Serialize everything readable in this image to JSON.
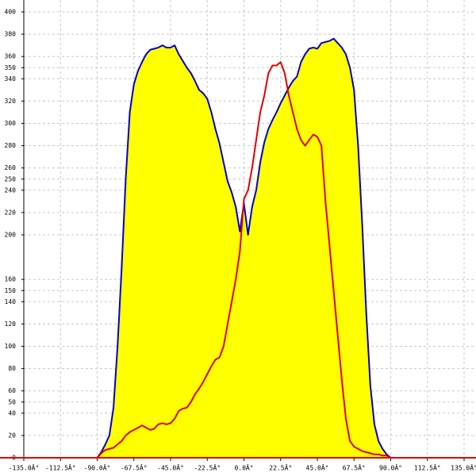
{
  "chart_data": {
    "type": "line",
    "x": [
      -90,
      -87.5,
      -85,
      -82.5,
      -80,
      -77.5,
      -75,
      -72.5,
      -70,
      -67.5,
      -65,
      -62.5,
      -60,
      -57.5,
      -55,
      -52.5,
      -50,
      -47.5,
      -45,
      -42.5,
      -40,
      -37.5,
      -35,
      -32.5,
      -30,
      -27.5,
      -25,
      -22.5,
      -20,
      -17.5,
      -15,
      -12.5,
      -10,
      -7.5,
      -5,
      -2.5,
      0,
      2.5,
      5,
      7.5,
      10,
      12.5,
      15,
      17.5,
      20,
      22.5,
      25,
      27.5,
      30,
      32.5,
      35,
      37.5,
      40,
      42.5,
      45,
      47.5,
      50,
      52.5,
      55,
      57.5,
      60,
      62.5,
      65,
      67.5,
      70,
      72.5,
      75,
      77.5,
      80,
      82.5,
      85,
      87.5,
      90
    ],
    "series": [
      {
        "color": "#0000cc",
        "fill": "#ffff00",
        "values": [
          0,
          5,
          12,
          20,
          45,
          100,
          170,
          250,
          310,
          335,
          347,
          355,
          362,
          366,
          367,
          368,
          370,
          368,
          368,
          370,
          362,
          356,
          350,
          345,
          338,
          330,
          327,
          322,
          310,
          295,
          282,
          265,
          248,
          238,
          225,
          203,
          228,
          200,
          225,
          240,
          265,
          283,
          295,
          303,
          310,
          318,
          325,
          332,
          338,
          342,
          355,
          362,
          367,
          368,
          367,
          372,
          373,
          374,
          376,
          372,
          368,
          362,
          350,
          330,
          280,
          210,
          130,
          65,
          30,
          15,
          8,
          3,
          0
        ]
      },
      {
        "color": "#e00000",
        "values": [
          0,
          4,
          7,
          8,
          9,
          12,
          15,
          20,
          23,
          25,
          27,
          29,
          27,
          25,
          26,
          30,
          31,
          30,
          31,
          35,
          42,
          44,
          45,
          50,
          57,
          62,
          68,
          75,
          82,
          88,
          90,
          100,
          120,
          140,
          160,
          185,
          232,
          240,
          260,
          285,
          310,
          325,
          345,
          352,
          352,
          355,
          345,
          325,
          310,
          295,
          285,
          280,
          285,
          290,
          288,
          280,
          230,
          190,
          150,
          110,
          70,
          35,
          15,
          10,
          8,
          6,
          5,
          4,
          3,
          3,
          2,
          2,
          0
        ]
      }
    ],
    "xlim": [
      -135,
      135
    ],
    "xticks": [
      {
        "value": -135,
        "label": "-135.0Â°"
      },
      {
        "value": -112.5,
        "label": "-112.5Â°"
      },
      {
        "value": -90,
        "label": "-90.0Â°"
      },
      {
        "value": -67.5,
        "label": "-67.5Â°"
      },
      {
        "value": -45,
        "label": "-45.0Â°"
      },
      {
        "value": -22.5,
        "label": "-22.5Â°"
      },
      {
        "value": 0,
        "label": "0.0Â°"
      },
      {
        "value": 22.5,
        "label": "22.5Â°"
      },
      {
        "value": 45,
        "label": "45.0Â°"
      },
      {
        "value": 67.5,
        "label": "67.5Â°"
      },
      {
        "value": 90,
        "label": "90.0Â°"
      },
      {
        "value": 112.5,
        "label": "112.5Â°"
      },
      {
        "value": 135,
        "label": "135.0Â°"
      }
    ],
    "ylim": [
      0,
      400
    ],
    "yticks": [
      0,
      20,
      40,
      50,
      60,
      80,
      100,
      120,
      140,
      150,
      160,
      200,
      220,
      240,
      250,
      260,
      280,
      300,
      320,
      340,
      350,
      360,
      380,
      400
    ],
    "grid": true
  }
}
